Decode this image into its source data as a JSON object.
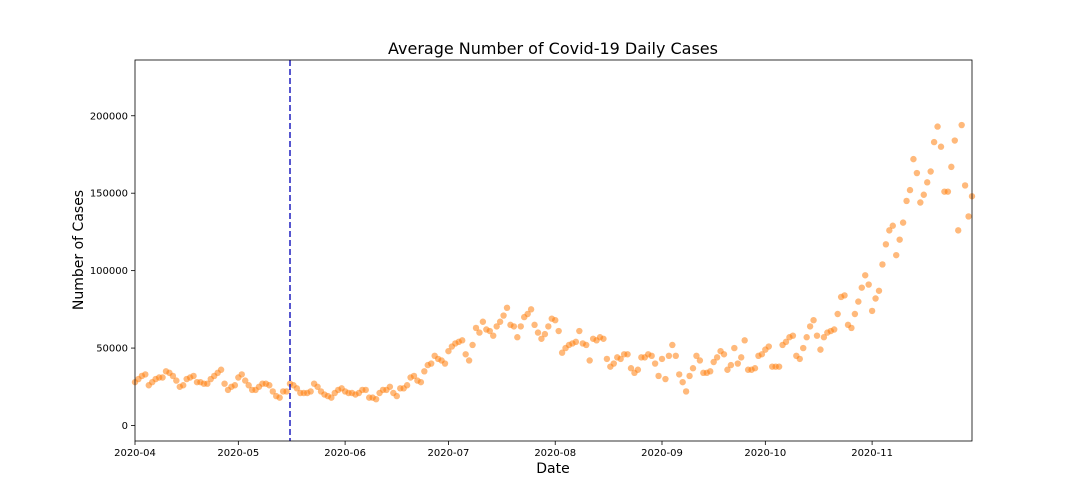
{
  "chart_data": {
    "type": "scatter",
    "title": "Average Number of Covid-19 Daily Cases",
    "xlabel": "Date",
    "ylabel": "Number of Cases",
    "x_start": "2020-04-01",
    "xlim": [
      "2020-04-01",
      "2020-11-30"
    ],
    "ylim": [
      -10000,
      236000
    ],
    "x_ticks": [
      {
        "date": "2020-04-01",
        "label": "2020-04"
      },
      {
        "date": "2020-05-01",
        "label": "2020-05"
      },
      {
        "date": "2020-06-01",
        "label": "2020-06"
      },
      {
        "date": "2020-07-01",
        "label": "2020-07"
      },
      {
        "date": "2020-08-01",
        "label": "2020-08"
      },
      {
        "date": "2020-09-01",
        "label": "2020-09"
      },
      {
        "date": "2020-10-01",
        "label": "2020-10"
      },
      {
        "date": "2020-11-01",
        "label": "2020-11"
      }
    ],
    "y_ticks": [
      0,
      50000,
      100000,
      150000,
      200000
    ],
    "vline": {
      "date": "2020-05-16",
      "color": "#1f1fbf",
      "style": "dashed"
    },
    "marker_color": "#ff7f0e",
    "grid": false,
    "series": [
      {
        "values": [
          28000,
          30000,
          32000,
          33000,
          26000,
          28000,
          30000,
          31000,
          31000,
          35000,
          34000,
          32000,
          29000,
          25000,
          26000,
          30000,
          31000,
          32000,
          28000,
          28000,
          27000,
          27000,
          30000,
          32000,
          34000,
          36000,
          27000,
          23000,
          25000,
          26000,
          31000,
          33000,
          29000,
          26000,
          23000,
          23000,
          25000,
          27000,
          27000,
          26000,
          22000,
          19000,
          18000,
          22000,
          22000,
          27000,
          26000,
          24000,
          21000,
          21000,
          21000,
          22000,
          27000,
          25000,
          22000,
          20000,
          19000,
          18000,
          21000,
          23000,
          24000,
          22000,
          21000,
          21000,
          20000,
          21000,
          23000,
          23000,
          18000,
          18000,
          17000,
          21000,
          23000,
          23000,
          25000,
          21000,
          19000,
          24000,
          24000,
          26000,
          31000,
          32000,
          29000,
          28000,
          35000,
          39000,
          40000,
          45000,
          43000,
          42000,
          40000,
          48000,
          51000,
          53000,
          54000,
          55000,
          46000,
          42000,
          52000,
          63000,
          60000,
          67000,
          62000,
          61000,
          58000,
          64000,
          67000,
          71000,
          76000,
          65000,
          64000,
          57000,
          64000,
          70000,
          72000,
          75000,
          65000,
          60000,
          56000,
          59000,
          64000,
          69000,
          68000,
          61000,
          47000,
          50000,
          52000,
          53000,
          54000,
          61000,
          53000,
          52000,
          42000,
          56000,
          55000,
          57000,
          56000,
          43000,
          38000,
          40000,
          44000,
          43000,
          46000,
          46000,
          37000,
          34000,
          36000,
          44000,
          44000,
          46000,
          45000,
          40000,
          32000,
          43000,
          30000,
          45000,
          52000,
          45000,
          33000,
          28000,
          22000,
          32000,
          37000,
          45000,
          42000,
          34000,
          34000,
          35000,
          41000,
          44000,
          48000,
          46000,
          36000,
          39000,
          50000,
          40000,
          44000,
          55000,
          36000,
          36000,
          37000,
          45000,
          46000,
          49000,
          51000,
          38000,
          38000,
          38000,
          52000,
          54000,
          57000,
          58000,
          45000,
          43000,
          50000,
          57000,
          64000,
          68000,
          58000,
          49000,
          57000,
          60000,
          61000,
          62000,
          72000,
          83000,
          84000,
          65000,
          63000,
          72000,
          80000,
          89000,
          97000,
          91000,
          74000,
          82000,
          87000,
          104000,
          117000,
          126000,
          129000,
          110000,
          120000,
          131000,
          145000,
          152000,
          172000,
          163000,
          144000,
          149000,
          157000,
          164000,
          183000,
          193000,
          180000,
          151000,
          151000,
          167000,
          184000,
          126000,
          194000,
          155000,
          135000,
          148000
        ]
      }
    ]
  }
}
